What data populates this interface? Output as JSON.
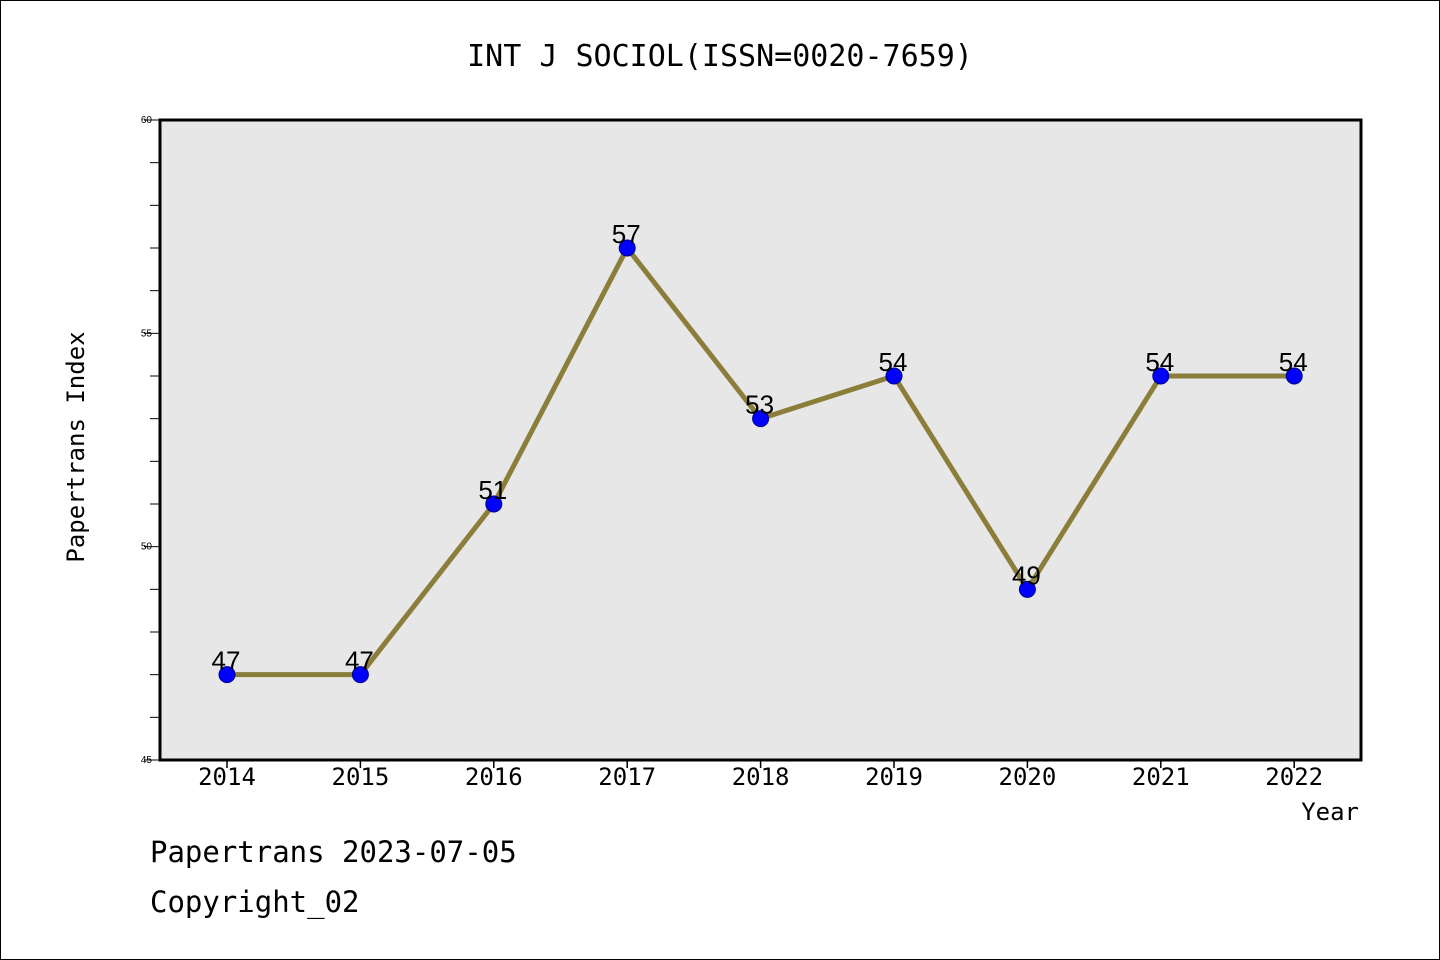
{
  "chart_data": {
    "type": "line",
    "title": "INT J SOCIOL(ISSN=0020-7659)",
    "xlabel": "Year",
    "ylabel": "Papertrans Index",
    "x": [
      "2014",
      "2015",
      "2016",
      "2017",
      "2018",
      "2019",
      "2020",
      "2021",
      "2022"
    ],
    "series": [
      {
        "values": [
          47,
          47,
          51,
          57,
          53,
          54,
          49,
          54,
          54
        ]
      }
    ],
    "data_labels": [
      "47",
      "47",
      "51",
      "57",
      "53",
      "54",
      "49",
      "54",
      "54"
    ],
    "ylim": [
      45,
      60
    ],
    "y_ticks": [
      "45",
      "50",
      "55",
      "60"
    ],
    "grid": false,
    "line_color": "#8b7d3a",
    "marker_color": "#0000ff",
    "plot_background": "#e7e7e7"
  },
  "footer": {
    "date_text": "Papertrans 2023-07-05",
    "copyright_text": "Copyright_02"
  }
}
